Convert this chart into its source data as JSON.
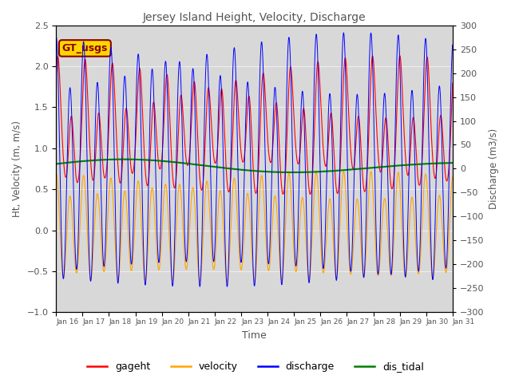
{
  "title": "Jersey Island Height, Velocity, Discharge",
  "xlabel": "Time",
  "ylabel_left": "Ht, Velocity (m, m/s)",
  "ylabel_right": "Discharge (m3/s)",
  "ylim_left": [
    -1.0,
    2.5
  ],
  "ylim_right": [
    -300,
    300
  ],
  "legend_entries": [
    "gageht",
    "velocity",
    "discharge",
    "dis_tidal"
  ],
  "legend_colors": [
    "red",
    "orange",
    "blue",
    "green"
  ],
  "gageht_color": "red",
  "velocity_color": "orange",
  "discharge_color": "blue",
  "dis_tidal_color": "green",
  "box_color": "#FFD700",
  "box_text": "GT_usgs",
  "box_text_color": "darkred",
  "background_color": "#d8d8d8",
  "title_color": "#555555",
  "tick_label_color": "#555555",
  "yticks_left": [
    -1.0,
    -0.5,
    0.0,
    0.5,
    1.0,
    1.5,
    2.0,
    2.5
  ],
  "yticks_right": [
    -300,
    -250,
    -200,
    -150,
    -100,
    -50,
    0,
    50,
    100,
    150,
    200,
    250,
    300
  ]
}
